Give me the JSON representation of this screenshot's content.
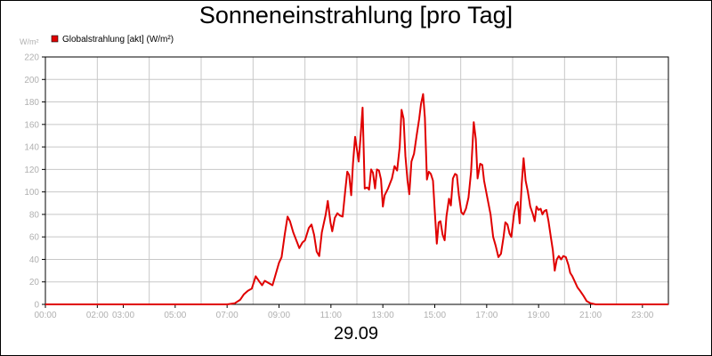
{
  "chart_data": {
    "type": "line",
    "title": "Sonneneinstrahlung [pro Tag]",
    "date": "29.09",
    "ylabel": "W/m²",
    "ylim": [
      0,
      220
    ],
    "yticks": [
      0,
      20,
      40,
      60,
      80,
      100,
      120,
      140,
      160,
      180,
      200,
      220
    ],
    "xlim": [
      0,
      24
    ],
    "xticks": [
      {
        "h": 0,
        "label": "00:00"
      },
      {
        "h": 2,
        "label": "02:00"
      },
      {
        "h": 3,
        "label": "03:00"
      },
      {
        "h": 5,
        "label": "05:00"
      },
      {
        "h": 7,
        "label": "07:00"
      },
      {
        "h": 9,
        "label": "09:00"
      },
      {
        "h": 11,
        "label": "11:00"
      },
      {
        "h": 13,
        "label": "13:00"
      },
      {
        "h": 15,
        "label": "15:00"
      },
      {
        "h": 17,
        "label": "17:00"
      },
      {
        "h": 19,
        "label": "19:00"
      },
      {
        "h": 21,
        "label": "21:00"
      },
      {
        "h": 23,
        "label": "23:00"
      }
    ],
    "grid": true,
    "legend_position": "top-left",
    "series": [
      {
        "name": "Globalstrahlung [akt] (W/m²)",
        "color": "#e00000",
        "points": [
          [
            0,
            0
          ],
          [
            7.0,
            0
          ],
          [
            7.3,
            1
          ],
          [
            7.5,
            4
          ],
          [
            7.65,
            9
          ],
          [
            7.8,
            12
          ],
          [
            7.95,
            14
          ],
          [
            8.1,
            25
          ],
          [
            8.25,
            20
          ],
          [
            8.35,
            17
          ],
          [
            8.45,
            21
          ],
          [
            8.6,
            19
          ],
          [
            8.75,
            17
          ],
          [
            9.0,
            37
          ],
          [
            9.1,
            42
          ],
          [
            9.22,
            62
          ],
          [
            9.33,
            78
          ],
          [
            9.42,
            74
          ],
          [
            9.55,
            64
          ],
          [
            9.7,
            55
          ],
          [
            9.78,
            50
          ],
          [
            9.9,
            55
          ],
          [
            10.0,
            57
          ],
          [
            10.15,
            68
          ],
          [
            10.25,
            71
          ],
          [
            10.35,
            62
          ],
          [
            10.45,
            47
          ],
          [
            10.55,
            43
          ],
          [
            10.65,
            64
          ],
          [
            10.8,
            80
          ],
          [
            10.88,
            92
          ],
          [
            10.98,
            73
          ],
          [
            11.05,
            65
          ],
          [
            11.15,
            77
          ],
          [
            11.25,
            81
          ],
          [
            11.35,
            79
          ],
          [
            11.45,
            78
          ],
          [
            11.55,
            101
          ],
          [
            11.63,
            118
          ],
          [
            11.7,
            115
          ],
          [
            11.78,
            97
          ],
          [
            11.85,
            125
          ],
          [
            11.93,
            149
          ],
          [
            12.0,
            138
          ],
          [
            12.07,
            127
          ],
          [
            12.15,
            152
          ],
          [
            12.22,
            175
          ],
          [
            12.3,
            103
          ],
          [
            12.4,
            104
          ],
          [
            12.47,
            102
          ],
          [
            12.55,
            120
          ],
          [
            12.62,
            117
          ],
          [
            12.7,
            103
          ],
          [
            12.77,
            120
          ],
          [
            12.85,
            119
          ],
          [
            12.93,
            111
          ],
          [
            13.0,
            87
          ],
          [
            13.07,
            97
          ],
          [
            13.2,
            103
          ],
          [
            13.35,
            112
          ],
          [
            13.45,
            123
          ],
          [
            13.55,
            119
          ],
          [
            13.65,
            140
          ],
          [
            13.72,
            173
          ],
          [
            13.8,
            165
          ],
          [
            13.87,
            132
          ],
          [
            13.95,
            110
          ],
          [
            14.02,
            98
          ],
          [
            14.1,
            127
          ],
          [
            14.2,
            134
          ],
          [
            14.3,
            150
          ],
          [
            14.4,
            165
          ],
          [
            14.47,
            178
          ],
          [
            14.55,
            187
          ],
          [
            14.62,
            166
          ],
          [
            14.7,
            111
          ],
          [
            14.77,
            118
          ],
          [
            14.85,
            116
          ],
          [
            14.93,
            110
          ],
          [
            15.0,
            83
          ],
          [
            15.08,
            54
          ],
          [
            15.15,
            73
          ],
          [
            15.22,
            74
          ],
          [
            15.3,
            62
          ],
          [
            15.38,
            57
          ],
          [
            15.45,
            78
          ],
          [
            15.55,
            94
          ],
          [
            15.62,
            88
          ],
          [
            15.7,
            112
          ],
          [
            15.78,
            116
          ],
          [
            15.85,
            115
          ],
          [
            15.93,
            97
          ],
          [
            16.02,
            82
          ],
          [
            16.1,
            80
          ],
          [
            16.2,
            85
          ],
          [
            16.3,
            95
          ],
          [
            16.4,
            118
          ],
          [
            16.5,
            162
          ],
          [
            16.58,
            147
          ],
          [
            16.65,
            112
          ],
          [
            16.75,
            125
          ],
          [
            16.83,
            124
          ],
          [
            16.9,
            110
          ],
          [
            17.0,
            98
          ],
          [
            17.15,
            80
          ],
          [
            17.25,
            60
          ],
          [
            17.35,
            52
          ],
          [
            17.45,
            42
          ],
          [
            17.55,
            45
          ],
          [
            17.65,
            60
          ],
          [
            17.72,
            73
          ],
          [
            17.8,
            71
          ],
          [
            17.88,
            63
          ],
          [
            17.95,
            60
          ],
          [
            18.05,
            80
          ],
          [
            18.12,
            88
          ],
          [
            18.2,
            91
          ],
          [
            18.27,
            72
          ],
          [
            18.35,
            107
          ],
          [
            18.42,
            130
          ],
          [
            18.5,
            110
          ],
          [
            18.58,
            101
          ],
          [
            18.68,
            87
          ],
          [
            18.78,
            80
          ],
          [
            18.85,
            74
          ],
          [
            18.92,
            87
          ],
          [
            19.0,
            84
          ],
          [
            19.08,
            85
          ],
          [
            19.15,
            80
          ],
          [
            19.22,
            83
          ],
          [
            19.3,
            84
          ],
          [
            19.38,
            74
          ],
          [
            19.47,
            60
          ],
          [
            19.55,
            48
          ],
          [
            19.62,
            30
          ],
          [
            19.7,
            40
          ],
          [
            19.78,
            43
          ],
          [
            19.87,
            40
          ],
          [
            19.95,
            43
          ],
          [
            20.05,
            42
          ],
          [
            20.15,
            35
          ],
          [
            20.22,
            28
          ],
          [
            20.3,
            25
          ],
          [
            20.4,
            20
          ],
          [
            20.5,
            15
          ],
          [
            20.6,
            12
          ],
          [
            20.72,
            8
          ],
          [
            20.85,
            3
          ],
          [
            21.0,
            1
          ],
          [
            21.2,
            0
          ],
          [
            24,
            0
          ]
        ]
      }
    ]
  }
}
